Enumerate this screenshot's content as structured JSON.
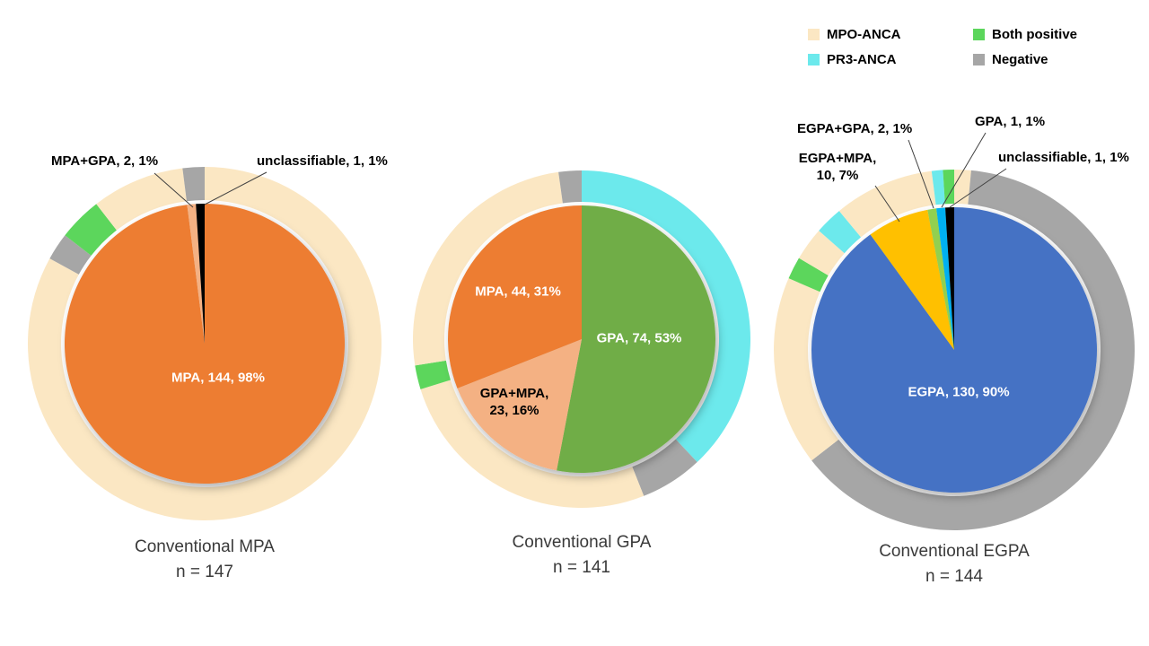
{
  "legend": {
    "items": [
      {
        "label": "MPO-ANCA",
        "color": "#FBE7C3"
      },
      {
        "label": "Both positive",
        "color": "#5CD65C"
      },
      {
        "label": "PR3-ANCA",
        "color": "#6CE9EC"
      },
      {
        "label": "Negative",
        "color": "#A6A6A6"
      }
    ]
  },
  "chart_data": [
    {
      "type": "pie",
      "variant": "donut: inner pie = conventional diagnosis, outer ring = ANCA serology",
      "title": "Conventional MPA",
      "n_label": "n = 147",
      "n": 147,
      "inner_slices": [
        {
          "label": "MPA",
          "count": 144,
          "pct": 98,
          "color": "#ED7D31",
          "text": "MPA, 144, 98%"
        },
        {
          "label": "MPA+GPA",
          "count": 2,
          "pct": 1,
          "color": "#F4B183",
          "text": "MPA+GPA, 2, 1%"
        },
        {
          "label": "unclassifiable",
          "count": 1,
          "pct": 1,
          "color": "#000000",
          "text": "unclassifiable, 1, 1%"
        }
      ],
      "outer_ring": [
        {
          "serology": "MPO-ANCA",
          "pct": 83
        },
        {
          "serology": "Negative",
          "pct": 2.5
        },
        {
          "serology": "Both positive",
          "pct": 4
        },
        {
          "serology": "MPO-ANCA",
          "pct": 8.5
        },
        {
          "serology": "Negative",
          "pct": 2
        }
      ]
    },
    {
      "type": "pie",
      "variant": "donut: inner pie = conventional diagnosis, outer ring = ANCA serology",
      "title": "Conventional GPA",
      "n_label": "n = 141",
      "n": 141,
      "inner_slices": [
        {
          "label": "GPA",
          "count": 74,
          "pct": 53,
          "color": "#70AD47",
          "text": "GPA, 74, 53%"
        },
        {
          "label": "GPA+MPA",
          "count": 23,
          "pct": 16,
          "color": "#F4B183",
          "text": "GPA+MPA, 23, 16%"
        },
        {
          "label": "MPA",
          "count": 44,
          "pct": 31,
          "color": "#ED7D31",
          "text": "MPA, 44, 31%"
        }
      ],
      "outer_ring": [
        {
          "serology": "PR3-ANCA",
          "pct": 38
        },
        {
          "serology": "Negative",
          "pct": 6
        },
        {
          "serology": "MPO-ANCA",
          "pct": 26.2
        },
        {
          "serology": "Both positive",
          "pct": 2.3
        },
        {
          "serology": "MPO-ANCA",
          "pct": 25.3
        },
        {
          "serology": "Negative",
          "pct": 2.2
        }
      ]
    },
    {
      "type": "pie",
      "variant": "donut: inner pie = conventional diagnosis, outer ring = ANCA serology",
      "title": "Conventional EGPA",
      "n_label": "n = 144",
      "n": 144,
      "inner_slices": [
        {
          "label": "EGPA",
          "count": 130,
          "pct": 90,
          "color": "#4472C4",
          "text": "EGPA, 130, 90%"
        },
        {
          "label": "EGPA+MPA",
          "count": 10,
          "pct": 7,
          "color": "#FFC000",
          "text": "EGPA+MPA, 10, 7%"
        },
        {
          "label": "EGPA+GPA",
          "count": 2,
          "pct": 1,
          "color": "#92D050",
          "text": "EGPA+GPA, 2, 1%"
        },
        {
          "label": "GPA",
          "count": 1,
          "pct": 1,
          "color": "#00B0F0",
          "text": "GPA, 1, 1%"
        },
        {
          "label": "unclassifiable",
          "count": 1,
          "pct": 1,
          "color": "#000000",
          "text": "unclassifiable, 1, 1%"
        }
      ],
      "outer_ring": [
        {
          "serology": "MPO-ANCA",
          "pct": 1.5
        },
        {
          "serology": "Negative",
          "pct": 63
        },
        {
          "serology": "MPO-ANCA",
          "pct": 17
        },
        {
          "serology": "Both positive",
          "pct": 2
        },
        {
          "serology": "MPO-ANCA",
          "pct": 3
        },
        {
          "serology": "PR3-ANCA",
          "pct": 2.5
        },
        {
          "serology": "MPO-ANCA",
          "pct": 9
        },
        {
          "serology": "PR3-ANCA",
          "pct": 1
        },
        {
          "serology": "Both positive",
          "pct": 1
        }
      ]
    }
  ]
}
